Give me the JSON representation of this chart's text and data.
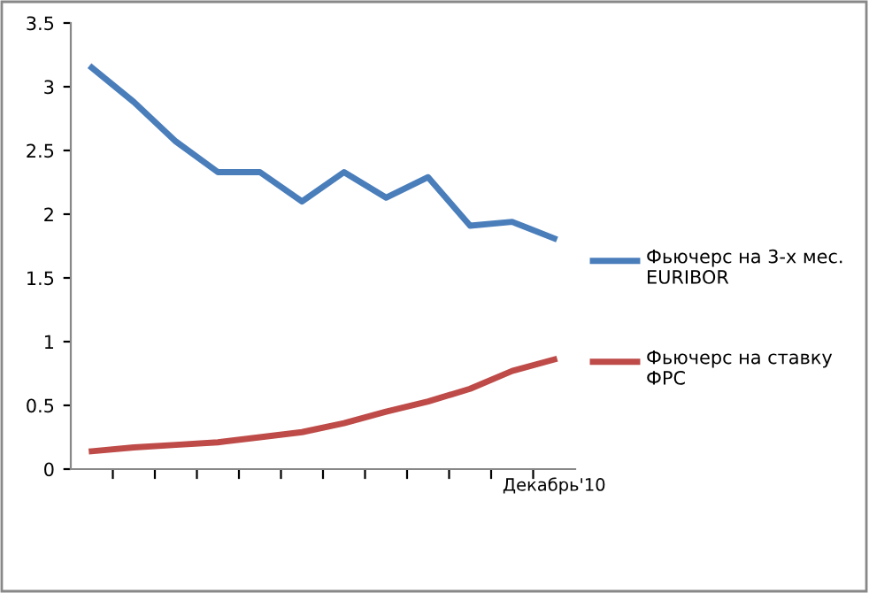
{
  "chart_data": {
    "type": "line",
    "categories": [
      null,
      null,
      null,
      null,
      null,
      null,
      null,
      null,
      null,
      null,
      null,
      "Декабрь'10"
    ],
    "series": [
      {
        "name": "Фьючерс на 3-х мес. EURIBOR",
        "color": "#4a7ebb",
        "values": [
          3.15,
          2.88,
          2.57,
          2.33,
          2.33,
          2.1,
          2.33,
          2.13,
          2.29,
          1.91,
          1.94,
          1.81
        ]
      },
      {
        "name": "Фьючерс на ставку ФРС",
        "color": "#be4b48",
        "values": [
          0.14,
          0.17,
          0.19,
          0.21,
          0.25,
          0.29,
          0.36,
          0.45,
          0.53,
          0.63,
          0.77,
          0.86
        ]
      }
    ],
    "ylim": [
      0,
      3.5
    ],
    "yticks": [
      0,
      0.5,
      1,
      1.5,
      2,
      2.5,
      3,
      3.5
    ],
    "grid": false,
    "legend": "right",
    "marker": "none",
    "line_style": "solid"
  }
}
